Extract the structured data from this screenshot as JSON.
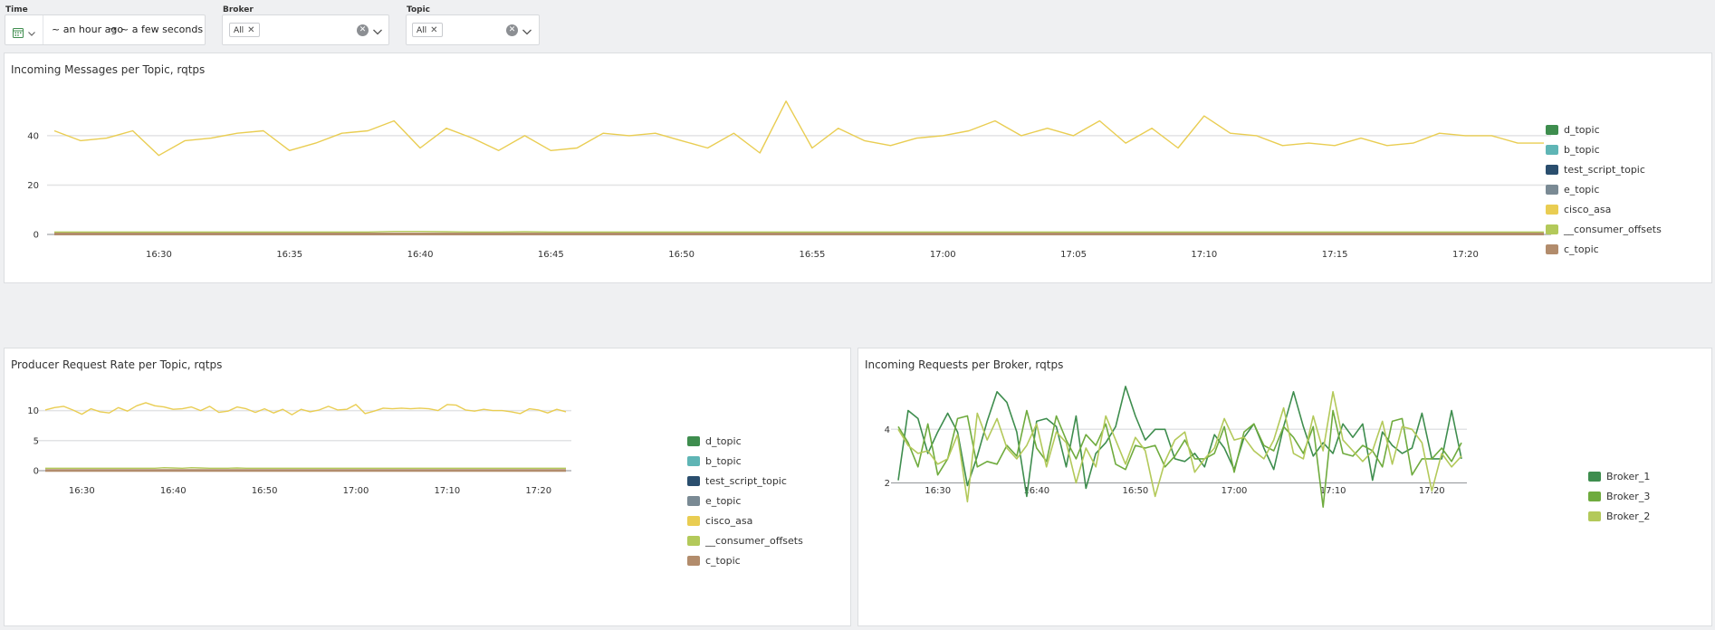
{
  "filters": {
    "time": {
      "label": "Time",
      "from": "~ an hour ago",
      "arrow": "→",
      "to": "~ a few seconds ago"
    },
    "broker": {
      "label": "Broker",
      "tag": "All"
    },
    "topic": {
      "label": "Topic",
      "tag": "All"
    }
  },
  "colors": {
    "d_topic": "#3e8d4e",
    "b_topic": "#5fb5b5",
    "test_script_topic": "#2a4e6e",
    "e_topic": "#7a8a94",
    "cisco_asa": "#e9cd52",
    "__consumer_offsets": "#b3c95a",
    "c_topic": "#b28c6c",
    "Broker_1": "#3e8d4e",
    "Broker_3": "#6fab3e",
    "Broker_2": "#b3c95a"
  },
  "panels": [
    {
      "title": "Incoming Messages per Topic, rqtps",
      "legend": [
        "d_topic",
        "b_topic",
        "test_script_topic",
        "e_topic",
        "cisco_asa",
        "__consumer_offsets",
        "c_topic"
      ],
      "chart_data": {
        "type": "line",
        "x": [
          "16:26",
          "16:27",
          "16:28",
          "16:29",
          "16:30",
          "16:31",
          "16:32",
          "16:33",
          "16:34",
          "16:35",
          "16:36",
          "16:37",
          "16:38",
          "16:39",
          "16:40",
          "16:41",
          "16:42",
          "16:43",
          "16:44",
          "16:45",
          "16:46",
          "16:47",
          "16:48",
          "16:49",
          "16:50",
          "16:51",
          "16:52",
          "16:53",
          "16:54",
          "16:55",
          "16:56",
          "16:57",
          "16:58",
          "16:59",
          "17:00",
          "17:01",
          "17:02",
          "17:03",
          "17:04",
          "17:05",
          "17:06",
          "17:07",
          "17:08",
          "17:09",
          "17:10",
          "17:11",
          "17:12",
          "17:13",
          "17:14",
          "17:15",
          "17:16",
          "17:17",
          "17:18",
          "17:19",
          "17:20",
          "17:21",
          "17:22",
          "17:23"
        ],
        "xticks": [
          "16:30",
          "16:35",
          "16:40",
          "16:45",
          "16:50",
          "16:55",
          "17:00",
          "17:05",
          "17:10",
          "17:15",
          "17:20"
        ],
        "yticks": [
          0,
          20,
          40
        ],
        "ylim": [
          0,
          55
        ],
        "series": [
          {
            "name": "cisco_asa",
            "values": [
              42,
              38,
              39,
              42,
              32,
              38,
              39,
              41,
              42,
              34,
              37,
              41,
              42,
              46,
              35,
              43,
              39,
              34,
              40,
              34,
              35,
              41,
              40,
              41,
              38,
              35,
              41,
              33,
              54,
              35,
              43,
              38,
              36,
              39,
              40,
              42,
              46,
              40,
              43,
              40,
              46,
              37,
              43,
              35,
              48,
              41,
              40,
              36,
              37,
              36,
              39,
              36,
              37,
              41,
              40,
              40,
              37,
              37
            ]
          },
          {
            "name": "__consumer_offsets",
            "values": [
              1,
              1,
              1,
              1,
              1,
              1,
              1,
              1,
              1,
              1,
              1,
              1,
              1,
              1.2,
              1.2,
              1.1,
              1,
              1,
              1.1,
              1,
              1,
              1,
              1,
              1,
              1,
              1,
              1,
              1,
              1,
              1,
              1,
              1,
              1,
              1,
              1,
              1,
              1,
              1,
              1,
              1,
              1,
              1,
              1,
              1,
              1,
              1,
              1,
              1,
              1,
              1,
              1,
              1,
              1,
              1,
              1,
              1,
              1,
              1
            ]
          },
          {
            "name": "c_topic",
            "values": [
              0.2,
              0.2,
              0.2,
              0.2,
              0.2,
              0.2,
              0.2,
              0.2,
              0.2,
              0.2,
              0.2,
              0.2,
              0.2,
              0.2,
              0.2,
              0.2,
              0.2,
              0.2,
              0.2,
              0.2,
              0.2,
              0.2,
              0.2,
              0.2,
              0.2,
              0.2,
              0.2,
              0.2,
              0.2,
              0.2,
              0.2,
              0.2,
              0.2,
              0.2,
              0.2,
              0.2,
              0.2,
              0.2,
              0.2,
              0.2,
              0.2,
              0.2,
              0.2,
              0.2,
              0.2,
              0.2,
              0.2,
              0.2,
              0.2,
              0.2,
              0.2,
              0.2,
              0.2,
              0.2,
              0.2,
              0.2,
              0.2,
              0.2
            ]
          }
        ]
      }
    },
    {
      "title": "Producer Request Rate per Topic, rqtps",
      "legend": [
        "d_topic",
        "b_topic",
        "test_script_topic",
        "e_topic",
        "cisco_asa",
        "__consumer_offsets",
        "c_topic"
      ],
      "chart_data": {
        "type": "line",
        "x": [
          "16:26",
          "16:27",
          "16:28",
          "16:29",
          "16:30",
          "16:31",
          "16:32",
          "16:33",
          "16:34",
          "16:35",
          "16:36",
          "16:37",
          "16:38",
          "16:39",
          "16:40",
          "16:41",
          "16:42",
          "16:43",
          "16:44",
          "16:45",
          "16:46",
          "16:47",
          "16:48",
          "16:49",
          "16:50",
          "16:51",
          "16:52",
          "16:53",
          "16:54",
          "16:55",
          "16:56",
          "16:57",
          "16:58",
          "16:59",
          "17:00",
          "17:01",
          "17:02",
          "17:03",
          "17:04",
          "17:05",
          "17:06",
          "17:07",
          "17:08",
          "17:09",
          "17:10",
          "17:11",
          "17:12",
          "17:13",
          "17:14",
          "17:15",
          "17:16",
          "17:17",
          "17:18",
          "17:19",
          "17:20",
          "17:21",
          "17:22",
          "17:23"
        ],
        "xticks": [
          "16:30",
          "16:40",
          "16:50",
          "17:00",
          "17:10",
          "17:20"
        ],
        "yticks": [
          0,
          5,
          10
        ],
        "ylim": [
          0,
          14
        ],
        "series": [
          {
            "name": "cisco_asa",
            "values": [
              10.1,
              10.5,
              10.7,
              10.1,
              9.4,
              10.3,
              9.8,
              9.6,
              10.5,
              9.9,
              10.8,
              11.3,
              10.8,
              10.6,
              10.2,
              10.3,
              10.6,
              10,
              10.7,
              9.7,
              9.9,
              10.6,
              10.3,
              9.7,
              10.3,
              9.6,
              10.2,
              9.3,
              10.2,
              9.8,
              10.1,
              10.7,
              10.1,
              10.2,
              11,
              9.5,
              9.9,
              10.4,
              10.3,
              10.4,
              10.3,
              10.4,
              10.3,
              10,
              11,
              10.9,
              10.1,
              9.9,
              10.2,
              10,
              10,
              9.8,
              9.5,
              10.3,
              10.1,
              9.6,
              10.2,
              9.8
            ]
          },
          {
            "name": "__consumer_offsets",
            "values": [
              0.4,
              0.4,
              0.4,
              0.4,
              0.4,
              0.4,
              0.4,
              0.4,
              0.4,
              0.4,
              0.4,
              0.4,
              0.4,
              0.5,
              0.45,
              0.4,
              0.5,
              0.45,
              0.4,
              0.4,
              0.4,
              0.45,
              0.4,
              0.4,
              0.4,
              0.4,
              0.4,
              0.4,
              0.4,
              0.4,
              0.4,
              0.4,
              0.4,
              0.4,
              0.4,
              0.4,
              0.4,
              0.4,
              0.4,
              0.4,
              0.4,
              0.4,
              0.4,
              0.4,
              0.4,
              0.4,
              0.4,
              0.4,
              0.4,
              0.4,
              0.4,
              0.4,
              0.4,
              0.4,
              0.4,
              0.4,
              0.4,
              0.4
            ]
          },
          {
            "name": "c_topic",
            "values": [
              0.05,
              0.05,
              0.05,
              0.05,
              0.05,
              0.05,
              0.05,
              0.05,
              0.05,
              0.05,
              0.05,
              0.05,
              0.05,
              0.05,
              0.05,
              0.05,
              0.05,
              0.05,
              0.05,
              0.05,
              0.05,
              0.05,
              0.05,
              0.05,
              0.05,
              0.05,
              0.05,
              0.05,
              0.05,
              0.05,
              0.05,
              0.05,
              0.05,
              0.05,
              0.05,
              0.05,
              0.05,
              0.05,
              0.05,
              0.05,
              0.05,
              0.05,
              0.05,
              0.05,
              0.05,
              0.05,
              0.05,
              0.05,
              0.05,
              0.05,
              0.05,
              0.05,
              0.05,
              0.05,
              0.05,
              0.05,
              0.05,
              0.05
            ]
          }
        ]
      }
    },
    {
      "title": "Incoming Requests per Broker, rqtps",
      "legend": [
        "Broker_1",
        "Broker_3",
        "Broker_2"
      ],
      "chart_data": {
        "type": "line",
        "x": [
          "16:26",
          "16:27",
          "16:28",
          "16:29",
          "16:30",
          "16:31",
          "16:32",
          "16:33",
          "16:34",
          "16:35",
          "16:36",
          "16:37",
          "16:38",
          "16:39",
          "16:40",
          "16:41",
          "16:42",
          "16:43",
          "16:44",
          "16:45",
          "16:46",
          "16:47",
          "16:48",
          "16:49",
          "16:50",
          "16:51",
          "16:52",
          "16:53",
          "16:54",
          "16:55",
          "16:56",
          "16:57",
          "16:58",
          "16:59",
          "17:00",
          "17:01",
          "17:02",
          "17:03",
          "17:04",
          "17:05",
          "17:06",
          "17:07",
          "17:08",
          "17:09",
          "17:10",
          "17:11",
          "17:12",
          "17:13",
          "17:14",
          "17:15",
          "17:16",
          "17:17",
          "17:18",
          "17:19",
          "17:20",
          "17:21",
          "17:22",
          "17:23"
        ],
        "xticks": [
          "16:30",
          "16:40",
          "16:50",
          "17:00",
          "17:10",
          "17:20"
        ],
        "yticks": [
          2,
          4
        ],
        "ylim": [
          0.5,
          6
        ],
        "series": [
          {
            "name": "Broker_1",
            "values": [
              2.1,
              4.7,
              4.4,
              3.1,
              3.9,
              4.6,
              3.9,
              1.9,
              3,
              4.3,
              5.4,
              5,
              3.9,
              1.5,
              4.3,
              4.4,
              4.1,
              2.6,
              4.5,
              1.8,
              3.1,
              3.5,
              4.1,
              5.6,
              4.5,
              3.6,
              4,
              4,
              2.9,
              2.8,
              3.1,
              2.6,
              3.8,
              3.3,
              2.5,
              3.7,
              4.2,
              3.3,
              2.5,
              4.1,
              5.4,
              4.1,
              3,
              3.5,
              3.1,
              4.2,
              3.7,
              4.2,
              2.1,
              3.9,
              3.4,
              3.1,
              3.3,
              4.6,
              2.9,
              2.9,
              4.7,
              2.9
            ]
          },
          {
            "name": "Broker_3",
            "values": [
              4.1,
              3.5,
              2.6,
              4.2,
              2.3,
              2.9,
              4.4,
              4.5,
              2.6,
              2.8,
              2.7,
              3.4,
              3,
              4.7,
              3.3,
              2.8,
              4.5,
              3.6,
              2.9,
              3.8,
              3.4,
              4.2,
              2.7,
              2.5,
              3.4,
              3.3,
              3.4,
              2.6,
              3,
              3.6,
              2.9,
              2.9,
              3.1,
              4.1,
              2.4,
              3.9,
              4.2,
              3.4,
              3.2,
              4.1,
              3.7,
              3.1,
              4.1,
              1.1,
              4.7,
              3.1,
              3,
              3.4,
              3.2,
              2.6,
              4.3,
              4.4,
              2.3,
              2.9,
              2.9,
              3.3,
              2.8,
              3.5
            ]
          },
          {
            "name": "Broker_2",
            "values": [
              4,
              3.4,
              3.1,
              3.2,
              2.7,
              2.9,
              3.8,
              1.3,
              4.6,
              3.6,
              4.4,
              3.3,
              2.9,
              3.4,
              4.2,
              2.6,
              3.9,
              3.5,
              2,
              3.3,
              2.6,
              4.5,
              3.6,
              2.7,
              3.7,
              3.2,
              1.5,
              2.8,
              3.6,
              3.9,
              2.4,
              2.9,
              3.3,
              4.4,
              3.6,
              3.7,
              3.2,
              2.9,
              3.6,
              4.8,
              3.1,
              2.9,
              4.5,
              3.2,
              5.4,
              3.6,
              3.2,
              2.8,
              3.2,
              4.3,
              2.7,
              4.1,
              4,
              3.5,
              1.7,
              3.1,
              2.6,
              3
            ]
          }
        ]
      }
    }
  ]
}
